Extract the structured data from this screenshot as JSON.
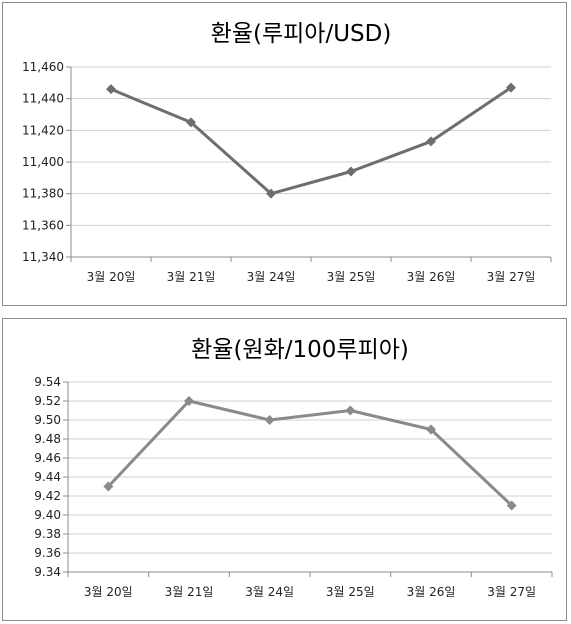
{
  "chart_data": [
    {
      "type": "line",
      "title": "환율(루피아/USD)",
      "categories": [
        "3월 20일",
        "3월 21일",
        "3월 24일",
        "3월 25일",
        "3월 26일",
        "3월 27일"
      ],
      "series": [
        {
          "values": [
            11446,
            11425,
            11380,
            11394,
            11413,
            11447
          ]
        }
      ],
      "ylim": [
        11340,
        11460
      ],
      "yticks": [
        "11,340",
        "11,360",
        "11,380",
        "11,400",
        "11,420",
        "11,440",
        "11,460"
      ],
      "ytick_values": [
        11340,
        11360,
        11380,
        11400,
        11420,
        11440,
        11460
      ],
      "grid": true,
      "line_color": "#6e6e6e"
    },
    {
      "type": "line",
      "title": "환율(원화/100루피아)",
      "categories": [
        "3월 20일",
        "3월 21일",
        "3월 24일",
        "3월 25일",
        "3월 26일",
        "3월 27일"
      ],
      "series": [
        {
          "values": [
            9.43,
            9.52,
            9.5,
            9.51,
            9.49,
            9.41
          ]
        }
      ],
      "ylim": [
        9.34,
        9.54
      ],
      "yticks": [
        "9.34",
        "9.36",
        "9.38",
        "9.40",
        "9.42",
        "9.44",
        "9.46",
        "9.48",
        "9.50",
        "9.52",
        "9.54"
      ],
      "ytick_values": [
        9.34,
        9.36,
        9.38,
        9.4,
        9.42,
        9.44,
        9.46,
        9.48,
        9.5,
        9.52,
        9.54
      ],
      "grid": true,
      "line_color": "#8a8a8a"
    }
  ]
}
